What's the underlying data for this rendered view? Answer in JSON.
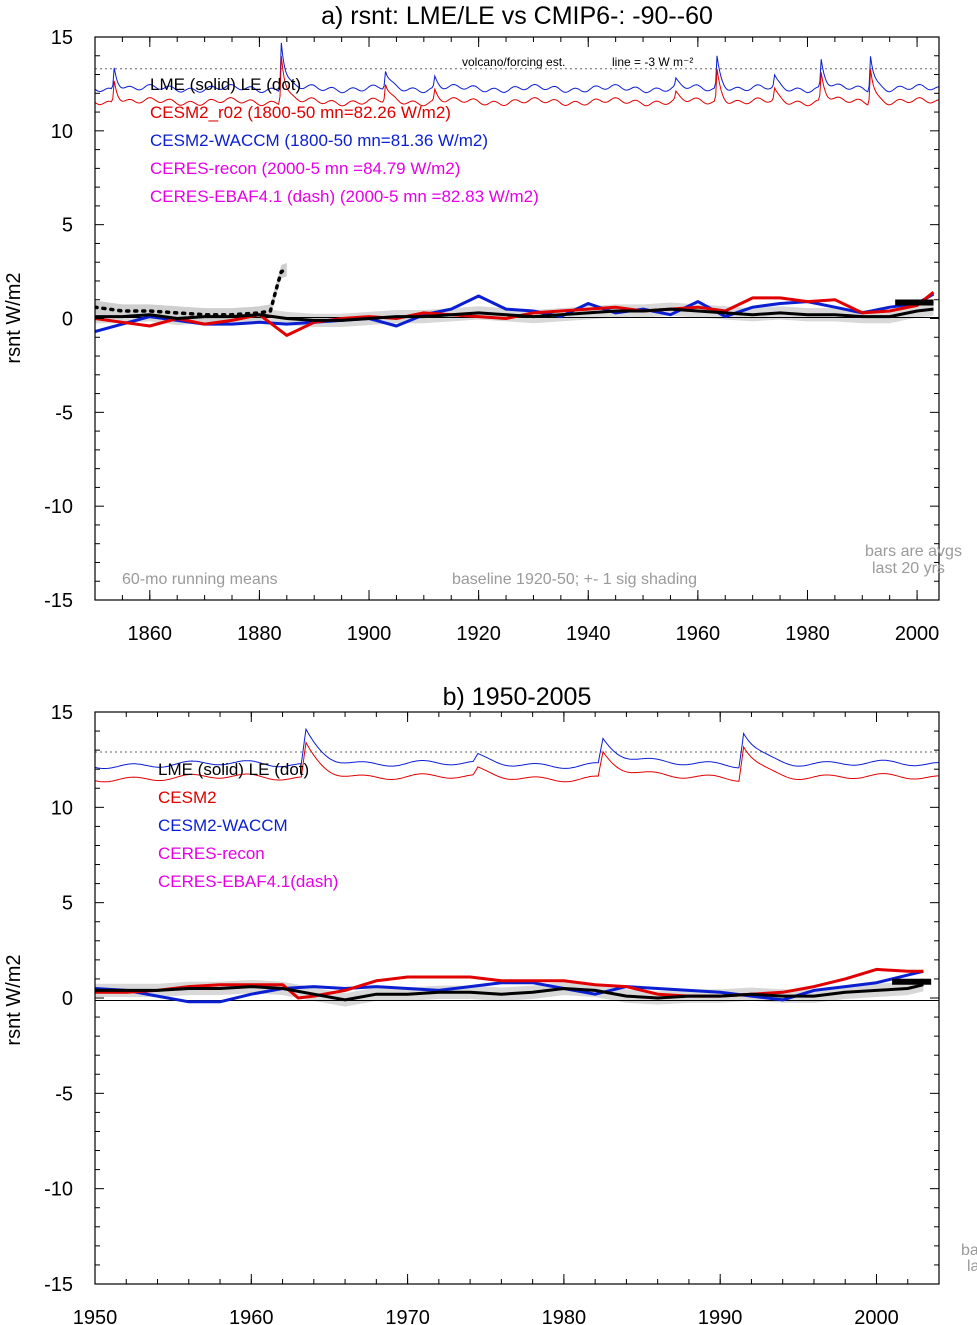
{
  "chart_data": [
    {
      "type": "line",
      "title": "a) rsnt: LME/LE vs CMIP6-: -90--60",
      "ylabel": "rsnt W/m2",
      "xlim": [
        1850,
        2004
      ],
      "ylim": [
        -15,
        15
      ],
      "xticks": [
        1860,
        1880,
        1900,
        1920,
        1940,
        1960,
        1980,
        2000
      ],
      "yticks": [
        15,
        10,
        5,
        0,
        -5,
        -10,
        -15
      ],
      "grid": false,
      "legend_position": "top-left",
      "legend": [
        {
          "text": "LME (solid)   LE (dot)",
          "color": "#000000"
        },
        {
          "text": "CESM2_r02 (1800-50 mn=82.26 W/m2)",
          "color": "#e00000"
        },
        {
          "text": "CESM2-WACCM (1800-50 mn=81.36 W/m2)",
          "color": "#0a1ed2"
        },
        {
          "text": "CERES-recon (2000-5 mn =84.79 W/m2)",
          "color": "#e600e6"
        },
        {
          "text": "CERES-EBAF4.1 (dash) (2000-5 mn =82.83 W/m2)",
          "color": "#e600e6"
        }
      ],
      "annotations": {
        "volcano_label": "volcano/forcing est.",
        "line_label": "line = -3 W m⁻²",
        "running_means": "60-mo running means",
        "baseline": "baseline 1920-50; +- 1 sig shading",
        "bars_1": "bars are avgs",
        "bars_2": "last 20 yrs"
      },
      "reference_line_y": 13.3,
      "series": [
        {
          "name": "LME (solid)",
          "color": "#000000",
          "x": [
            1850,
            1855,
            1860,
            1865,
            1870,
            1875,
            1880,
            1885,
            1890,
            1895,
            1900,
            1905,
            1910,
            1915,
            1920,
            1925,
            1930,
            1935,
            1940,
            1945,
            1950,
            1955,
            1960,
            1965,
            1970,
            1975,
            1980,
            1985,
            1990,
            1995,
            2000,
            2003
          ],
          "y": [
            0.1,
            0.1,
            0.2,
            0.0,
            0.1,
            0.1,
            0.2,
            0.0,
            -0.1,
            -0.1,
            0.0,
            0.1,
            0.1,
            0.2,
            0.3,
            0.2,
            0.1,
            0.2,
            0.3,
            0.4,
            0.4,
            0.5,
            0.4,
            0.3,
            0.2,
            0.3,
            0.2,
            0.2,
            0.1,
            0.1,
            0.4,
            0.5
          ]
        },
        {
          "name": "LE (dot)",
          "color": "#000000",
          "x": [
            1850,
            1855,
            1860,
            1865,
            1870,
            1875,
            1880,
            1882,
            1883,
            1884,
            1885
          ],
          "y": [
            0.6,
            0.4,
            0.4,
            0.3,
            0.2,
            0.2,
            0.3,
            0.4,
            1.5,
            2.5,
            2.6
          ]
        },
        {
          "name": "CESM2_r02",
          "color": "#e00000",
          "x": [
            1850,
            1855,
            1860,
            1865,
            1870,
            1875,
            1880,
            1885,
            1890,
            1895,
            1900,
            1905,
            1910,
            1915,
            1920,
            1925,
            1930,
            1935,
            1940,
            1945,
            1950,
            1955,
            1960,
            1965,
            1970,
            1975,
            1980,
            1985,
            1990,
            1995,
            2000,
            2003
          ],
          "y": [
            0.0,
            -0.2,
            -0.4,
            0.0,
            -0.3,
            -0.1,
            0.2,
            -0.9,
            -0.2,
            0.0,
            0.1,
            0.0,
            0.3,
            0.2,
            0.1,
            0.0,
            0.3,
            0.4,
            0.5,
            0.6,
            0.4,
            0.5,
            0.6,
            0.4,
            1.1,
            1.1,
            0.9,
            1.0,
            0.3,
            0.4,
            0.7,
            1.4
          ]
        },
        {
          "name": "CESM2-WACCM",
          "color": "#0a1ed2",
          "x": [
            1850,
            1855,
            1860,
            1865,
            1870,
            1875,
            1880,
            1885,
            1890,
            1895,
            1900,
            1905,
            1910,
            1915,
            1920,
            1925,
            1930,
            1935,
            1940,
            1945,
            1950,
            1955,
            1960,
            1965,
            1970,
            1975,
            1980,
            1985,
            1990,
            1995,
            2000,
            2003
          ],
          "y": [
            -0.7,
            -0.3,
            0.1,
            -0.1,
            -0.3,
            -0.3,
            -0.2,
            -0.3,
            -0.2,
            -0.1,
            0.0,
            -0.4,
            0.2,
            0.5,
            1.2,
            0.5,
            0.4,
            0.1,
            0.8,
            0.3,
            0.5,
            0.2,
            0.9,
            0.1,
            0.6,
            0.8,
            0.9,
            0.6,
            0.3,
            0.6,
            0.8,
            1.3
          ]
        }
      ],
      "bars": [
        {
          "color": "#000000",
          "x": [
            1996,
            2003
          ],
          "y": 0.85
        }
      ]
    },
    {
      "type": "line",
      "title": "b) 1950-2005",
      "ylabel": "rsnt W/m2",
      "xlim": [
        1950,
        2004
      ],
      "ylim": [
        -15,
        15
      ],
      "xticks": [
        1950,
        1960,
        1970,
        1980,
        1990,
        2000
      ],
      "yticks": [
        15,
        10,
        5,
        0,
        -5,
        -10,
        -15
      ],
      "grid": false,
      "legend_position": "top-left",
      "legend": [
        {
          "text": "LME (solid)      LE (dot)",
          "color": "#000000"
        },
        {
          "text": "CESM2",
          "color": "#e00000"
        },
        {
          "text": "CESM2-WACCM",
          "color": "#0a1ed2"
        },
        {
          "text": "CERES-recon",
          "color": "#e600e6"
        },
        {
          "text": "CERES-EBAF4.1(dash)",
          "color": "#e600e6"
        }
      ],
      "annotations": {
        "bars_1": "ba",
        "bars_2": "la"
      },
      "reference_line_y": 13.3,
      "series": [
        {
          "name": "LME",
          "color": "#000000",
          "x": [
            1950,
            1952,
            1954,
            1956,
            1958,
            1960,
            1962,
            1964,
            1966,
            1968,
            1970,
            1972,
            1974,
            1976,
            1978,
            1980,
            1982,
            1984,
            1986,
            1988,
            1990,
            1992,
            1994,
            1996,
            1998,
            2000,
            2002,
            2003
          ],
          "y": [
            0.4,
            0.4,
            0.4,
            0.5,
            0.5,
            0.6,
            0.5,
            0.2,
            -0.1,
            0.2,
            0.2,
            0.3,
            0.3,
            0.2,
            0.3,
            0.5,
            0.4,
            0.1,
            0.0,
            0.1,
            0.1,
            0.2,
            0.1,
            0.1,
            0.3,
            0.4,
            0.5,
            0.7
          ]
        },
        {
          "name": "CESM2",
          "color": "#e00000",
          "x": [
            1950,
            1952,
            1954,
            1956,
            1958,
            1960,
            1962,
            1963,
            1964,
            1966,
            1968,
            1970,
            1972,
            1974,
            1976,
            1978,
            1980,
            1982,
            1984,
            1986,
            1988,
            1990,
            1992,
            1994,
            1996,
            1998,
            2000,
            2002,
            2003
          ],
          "y": [
            0.3,
            0.3,
            0.4,
            0.6,
            0.7,
            0.7,
            0.7,
            0.0,
            0.1,
            0.4,
            0.9,
            1.1,
            1.1,
            1.1,
            0.9,
            0.9,
            0.9,
            0.7,
            0.6,
            0.2,
            0.1,
            0.1,
            0.2,
            0.3,
            0.6,
            1.0,
            1.5,
            1.4,
            1.4
          ]
        },
        {
          "name": "CESM2-WACCM",
          "color": "#0a1ed2",
          "x": [
            1950,
            1952,
            1954,
            1956,
            1958,
            1960,
            1962,
            1964,
            1966,
            1968,
            1970,
            1972,
            1974,
            1976,
            1978,
            1980,
            1982,
            1984,
            1986,
            1988,
            1990,
            1992,
            1994,
            1996,
            1998,
            2000,
            2002,
            2003
          ],
          "y": [
            0.5,
            0.4,
            0.1,
            -0.2,
            -0.2,
            0.2,
            0.5,
            0.6,
            0.5,
            0.6,
            0.5,
            0.4,
            0.6,
            0.8,
            0.8,
            0.5,
            0.2,
            0.6,
            0.5,
            0.4,
            0.3,
            0.1,
            -0.1,
            0.4,
            0.6,
            0.8,
            1.2,
            1.4
          ]
        }
      ],
      "bars": [
        {
          "color": "#000000",
          "x": [
            2001,
            2003.5
          ],
          "y": 0.85
        }
      ]
    }
  ],
  "ylabel_text": "rsnt W/m2"
}
